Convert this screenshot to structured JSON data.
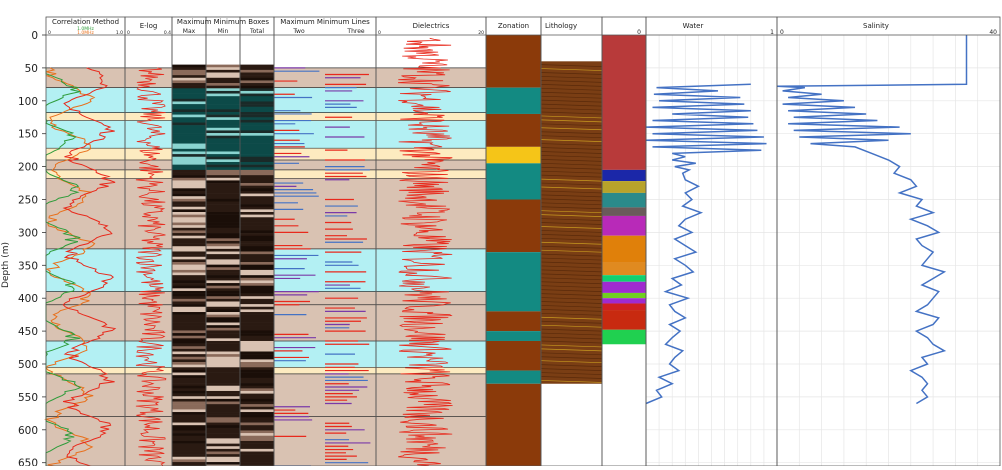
{
  "depth_axis": {
    "label": "Depth (m)",
    "ticks": [
      0,
      50,
      100,
      150,
      200,
      250,
      300,
      350,
      400,
      450,
      500,
      550,
      600,
      650
    ],
    "range": [
      0,
      660
    ]
  },
  "tracks": {
    "correlation": {
      "title": "Correlation Method",
      "scale_a": "1.0MHz",
      "scale_b": "1.0MHz",
      "min": "0",
      "max": "1.0"
    },
    "elog": {
      "title": "E-log",
      "min": "0",
      "max": "0.4"
    },
    "boxes": {
      "title": "Maximum Minimum Boxes",
      "sub": [
        "Max",
        "Min",
        "Total"
      ]
    },
    "lines": {
      "title": "Maximum Minimum Lines",
      "sub": [
        "Two",
        "Three"
      ]
    },
    "dielectrics": {
      "title": "Dielectrics",
      "min": "0",
      "max": "20"
    },
    "zonation": {
      "title": "Zonation"
    },
    "lithology": {
      "title": "Lithology"
    },
    "water": {
      "title": "Water",
      "min": "0",
      "max": "1"
    },
    "salinity": {
      "title": "Salinity",
      "min": "0",
      "max": "40"
    }
  },
  "colors": {
    "tan": "#d9c2b2",
    "cyan": "#b3f0f3",
    "cream": "#fdebc0",
    "blue_line": "#4472c4",
    "red": "#e8291c",
    "orange": "#e8701c",
    "green": "#2e9c3a",
    "purple": "#7a3aa8",
    "zone_brown": "#8b3a0a",
    "zone_teal": "#138a82",
    "zone_yellow": "#f5c518"
  },
  "chart_data": {
    "type": "well-log",
    "facies_intervals": [
      {
        "top": 50,
        "base": 80,
        "facies": "tan"
      },
      {
        "top": 80,
        "base": 118,
        "facies": "cyan"
      },
      {
        "top": 118,
        "base": 130,
        "facies": "cream"
      },
      {
        "top": 130,
        "base": 172,
        "facies": "cyan"
      },
      {
        "top": 172,
        "base": 190,
        "facies": "cream"
      },
      {
        "top": 190,
        "base": 205,
        "facies": "tan"
      },
      {
        "top": 205,
        "base": 218,
        "facies": "cream"
      },
      {
        "top": 218,
        "base": 325,
        "facies": "tan"
      },
      {
        "top": 325,
        "base": 390,
        "facies": "cyan"
      },
      {
        "top": 390,
        "base": 410,
        "facies": "tan"
      },
      {
        "top": 410,
        "base": 465,
        "facies": "tan"
      },
      {
        "top": 465,
        "base": 505,
        "facies": "cyan"
      },
      {
        "top": 505,
        "base": 515,
        "facies": "cream"
      },
      {
        "top": 515,
        "base": 580,
        "facies": "tan"
      },
      {
        "top": 580,
        "base": 660,
        "facies": "tan"
      }
    ],
    "zonation": [
      {
        "top": 0,
        "base": 80,
        "zone": "zone_brown"
      },
      {
        "top": 80,
        "base": 120,
        "zone": "zone_teal"
      },
      {
        "top": 120,
        "base": 170,
        "zone": "zone_brown"
      },
      {
        "top": 170,
        "base": 195,
        "zone": "zone_yellow"
      },
      {
        "top": 195,
        "base": 250,
        "zone": "zone_teal"
      },
      {
        "top": 250,
        "base": 330,
        "zone": "zone_brown"
      },
      {
        "top": 330,
        "base": 420,
        "zone": "zone_teal"
      },
      {
        "top": 420,
        "base": 450,
        "zone": "zone_brown"
      },
      {
        "top": 450,
        "base": 465,
        "zone": "zone_teal"
      },
      {
        "top": 465,
        "base": 510,
        "zone": "zone_brown"
      },
      {
        "top": 510,
        "base": 530,
        "zone": "zone_teal"
      },
      {
        "top": 530,
        "base": 660,
        "zone": "zone_brown"
      }
    ],
    "lithology_strip": [
      {
        "top": 0,
        "base": 205,
        "color": "#b83a3a"
      },
      {
        "top": 205,
        "base": 222,
        "color": "#1b27a8"
      },
      {
        "top": 222,
        "base": 240,
        "color": "#b8a32a"
      },
      {
        "top": 240,
        "base": 262,
        "color": "#2a8a8a"
      },
      {
        "top": 262,
        "base": 275,
        "color": "#6a5a5a"
      },
      {
        "top": 275,
        "base": 305,
        "color": "#b82ab8"
      },
      {
        "top": 305,
        "base": 345,
        "color": "#e0800a"
      },
      {
        "top": 345,
        "base": 365,
        "color": "#e08a20"
      },
      {
        "top": 365,
        "base": 375,
        "color": "#10d070"
      },
      {
        "top": 375,
        "base": 392,
        "color": "#a02ad0"
      },
      {
        "top": 392,
        "base": 400,
        "color": "#70d020"
      },
      {
        "top": 400,
        "base": 408,
        "color": "#a02ad0"
      },
      {
        "top": 408,
        "base": 418,
        "color": "#d02020"
      },
      {
        "top": 418,
        "base": 448,
        "color": "#c82a10"
      },
      {
        "top": 448,
        "base": 470,
        "color": "#20d050"
      }
    ],
    "water": {
      "xlim": [
        0,
        1
      ],
      "depth": [
        75,
        80,
        85,
        90,
        95,
        100,
        105,
        110,
        115,
        120,
        125,
        130,
        135,
        140,
        145,
        150,
        155,
        160,
        165,
        170,
        175,
        180,
        185,
        190,
        195,
        200,
        205,
        210,
        220,
        230,
        240,
        250,
        260,
        270,
        280,
        290,
        300,
        310,
        320,
        330,
        340,
        350,
        360,
        370,
        380,
        390,
        400,
        410,
        420,
        430,
        440,
        450,
        460,
        470,
        480,
        490,
        500,
        510,
        520,
        530,
        540,
        550,
        560
      ],
      "value": [
        0.8,
        0.08,
        0.55,
        0.06,
        0.72,
        0.1,
        0.75,
        0.05,
        0.8,
        0.2,
        0.78,
        0.05,
        0.82,
        0.0,
        0.85,
        0.05,
        0.9,
        0.0,
        0.92,
        0.05,
        0.88,
        0.2,
        0.3,
        0.2,
        0.38,
        0.22,
        0.33,
        0.28,
        0.3,
        0.4,
        0.3,
        0.35,
        0.28,
        0.42,
        0.3,
        0.25,
        0.35,
        0.22,
        0.3,
        0.38,
        0.22,
        0.3,
        0.36,
        0.2,
        0.27,
        0.15,
        0.32,
        0.18,
        0.22,
        0.3,
        0.18,
        0.26,
        0.2,
        0.15,
        0.28,
        0.22,
        0.18,
        0.25,
        0.1,
        0.2,
        0.08,
        0.12,
        0.0
      ]
    },
    "salinity": {
      "xlim": [
        0,
        40
      ],
      "depth": [
        0,
        75,
        78,
        80,
        85,
        90,
        95,
        100,
        105,
        110,
        115,
        120,
        125,
        130,
        135,
        140,
        145,
        150,
        155,
        160,
        165,
        170,
        180,
        190,
        200,
        210,
        220,
        230,
        240,
        250,
        260,
        270,
        280,
        290,
        300,
        310,
        320,
        330,
        340,
        350,
        360,
        370,
        380,
        390,
        400,
        410,
        420,
        430,
        440,
        450,
        460,
        470,
        480,
        490,
        500,
        510,
        520,
        530,
        540,
        550,
        560
      ],
      "value": [
        34,
        34,
        0,
        5,
        1,
        8,
        2,
        12,
        1,
        14,
        2,
        16,
        3,
        18,
        2,
        22,
        3,
        24,
        4,
        20,
        6,
        14,
        17,
        20,
        22,
        21,
        24,
        25,
        22,
        26,
        25,
        28,
        24,
        27,
        29,
        25,
        26,
        28,
        27,
        26,
        30,
        28,
        26,
        29,
        28,
        27,
        25,
        29,
        28,
        25,
        27,
        28,
        30,
        26,
        27,
        24,
        26,
        27,
        26,
        27,
        25
      ]
    }
  }
}
